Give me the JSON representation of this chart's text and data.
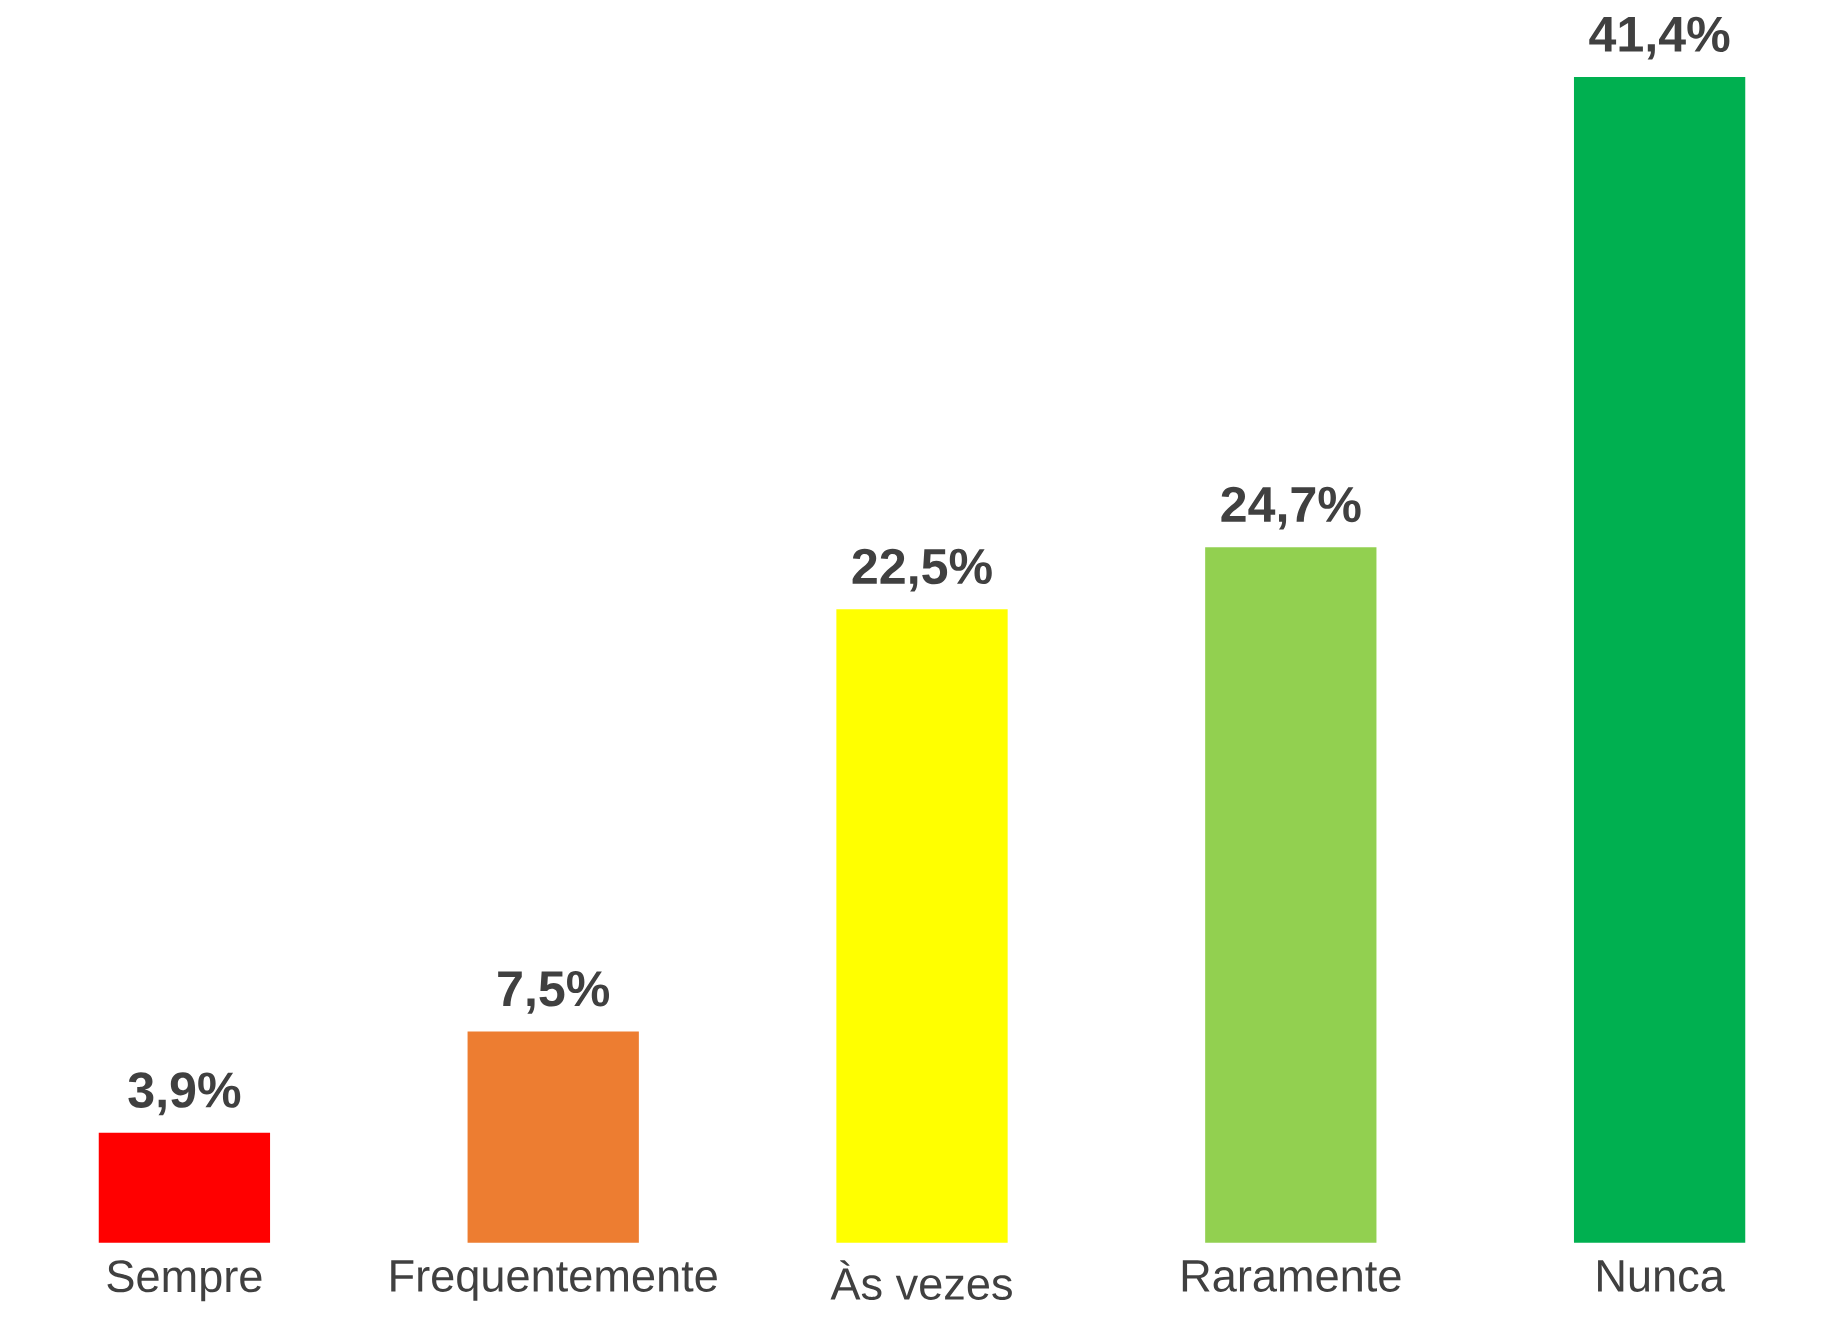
{
  "chart_data": {
    "type": "bar",
    "categories": [
      "Sempre",
      "Frequentemente",
      "Às vezes",
      "Raramente",
      "Nunca"
    ],
    "values": [
      3.9,
      7.5,
      22.5,
      24.7,
      41.4
    ],
    "value_labels": [
      "3,9%",
      "7,5%",
      "22,5%",
      "24,7%",
      "41,4%"
    ],
    "colors": [
      "#ff0000",
      "#ed7d31",
      "#ffff00",
      "#92d050",
      "#00b050"
    ]
  }
}
